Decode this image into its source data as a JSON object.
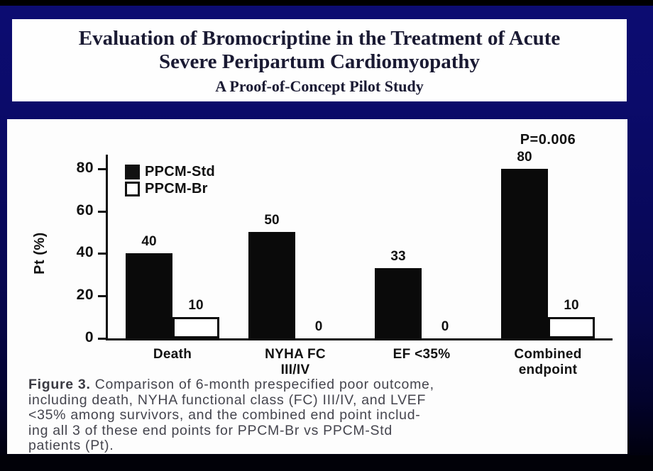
{
  "slide": {
    "title_line1": "Evaluation of Bromocriptine in the Treatment of Acute",
    "title_line2": "Severe Peripartum Cardiomyopathy",
    "subtitle": "A Proof-of-Concept Pilot Study"
  },
  "chart_data": {
    "type": "bar",
    "title": "",
    "xlabel": "",
    "ylabel": "Pt (%)",
    "ylim": [
      0,
      88
    ],
    "yticks": [
      0,
      20,
      40,
      60,
      80
    ],
    "grid": false,
    "legend_position": "top-left inside plot",
    "categories": [
      "Death",
      "NYHA FC\nIII/IV",
      "EF <35%",
      "Combined\nendpoint"
    ],
    "series": [
      {
        "name": "PPCM-Std",
        "fill": "solid",
        "color": "#0a0a0a",
        "values": [
          40,
          50,
          33,
          80
        ]
      },
      {
        "name": "PPCM-Br",
        "fill": "outline",
        "color": "#ffffff",
        "values": [
          10,
          0,
          0,
          10
        ]
      }
    ],
    "annotation": {
      "text": "P=0.006",
      "category": "Combined endpoint"
    }
  },
  "caption": {
    "figure_label": "Figure 3.",
    "line1": "Comparison of 6-month prespecified poor outcome,",
    "line2": "including death, NYHA functional class (FC) III/IV, and LVEF",
    "line3": "<35% among survivors, and the combined end point includ-",
    "line4": "ing all 3 of these end points for PPCM-Br vs PPCM-Std",
    "line5": "patients (Pt)."
  },
  "colors": {
    "background_navy": "#0b0b6a",
    "panel_white": "#fdfdfd",
    "bar_black": "#0a0a0a",
    "title_text": "#1a1a33",
    "caption_text": "#45454e"
  }
}
